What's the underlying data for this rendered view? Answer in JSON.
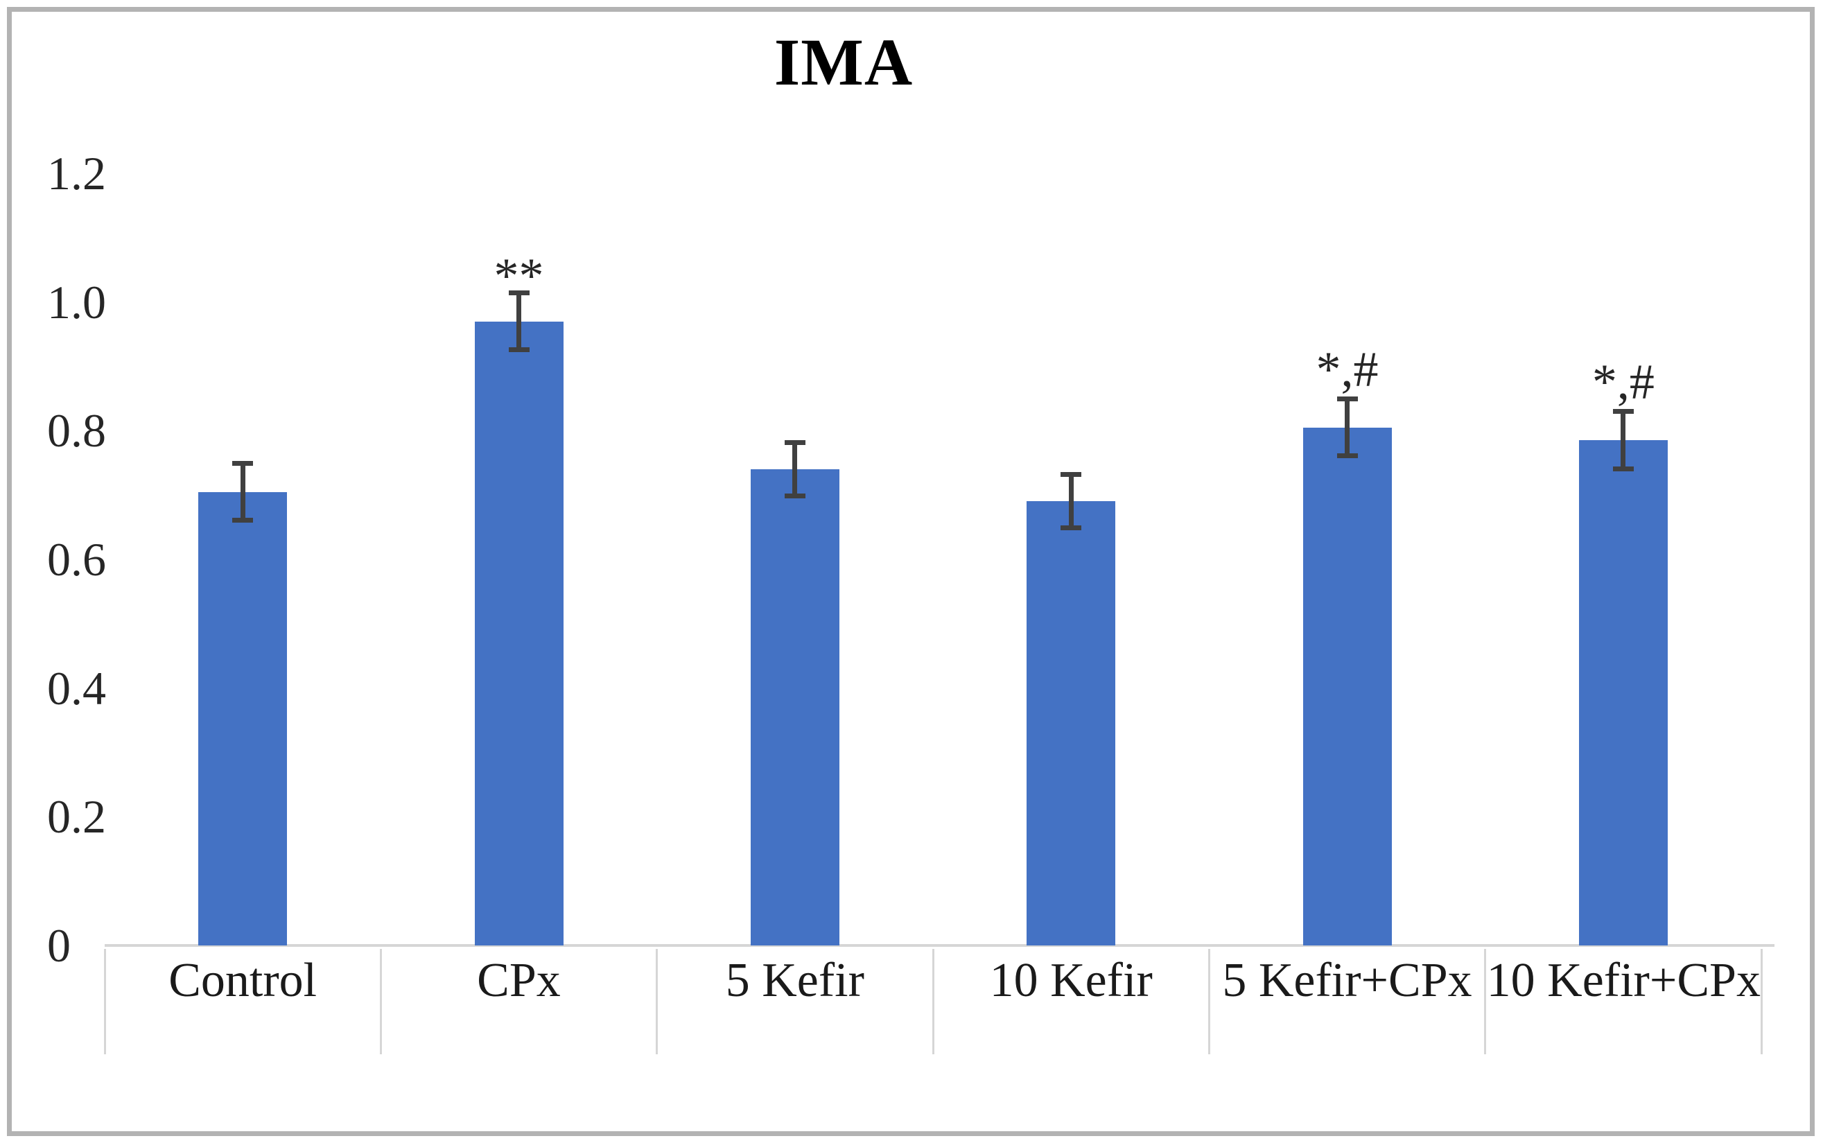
{
  "chart_data": {
    "type": "bar",
    "title": "IMA",
    "categories": [
      "Control",
      "CPx",
      "5 Kefir",
      "10 Kefir",
      "5 Kefir+CPx",
      "10 Kefir+CPx"
    ],
    "values": [
      0.705,
      0.97,
      0.74,
      0.69,
      0.805,
      0.785
    ],
    "error_bars": [
      0.045,
      0.045,
      0.042,
      0.042,
      0.045,
      0.045
    ],
    "significance_annotations": [
      "",
      "**",
      "",
      "",
      "*,#",
      "*,#"
    ],
    "xlabel": "",
    "ylabel": "",
    "ylim": [
      0,
      1.2
    ],
    "yticks": [
      0,
      0.2,
      0.4,
      0.6,
      0.8,
      1.0,
      1.2
    ],
    "ytick_labels": [
      "0",
      "0.2",
      "0.4",
      "0.6",
      "0.8",
      "1.0",
      "1.2"
    ],
    "grid": false,
    "legend": false,
    "bar_color": "#4472C4",
    "error_bar_color": "#404040",
    "axis_line_color": "#D6D6D6",
    "frame_border_color": "#B3B3B3",
    "background": "#FFFFFF"
  }
}
